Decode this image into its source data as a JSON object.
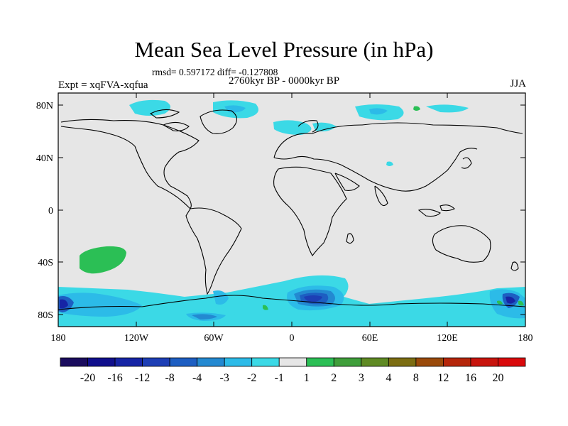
{
  "title": "Mean Sea Level Pressure (in hPa)",
  "stats_line": "rmsd= 0.597172 diff= -0.127808",
  "period_line": "2760kyr BP - 0000kyr BP",
  "experiment_label": "Expt = xqFVA-xqfua",
  "season_label": "JJA",
  "y_tick_labels": [
    "80N",
    "40N",
    "0",
    "40S",
    "80S"
  ],
  "x_tick_labels": [
    "180",
    "120W",
    "60W",
    "0",
    "60E",
    "120E",
    "180"
  ],
  "colorbar": {
    "labels": [
      "-20",
      "-16",
      "-12",
      "-8",
      "-4",
      "-3",
      "-2",
      "-1",
      "1",
      "2",
      "3",
      "4",
      "8",
      "12",
      "16",
      "20"
    ],
    "colors": [
      "#1a0c5e",
      "#100f8c",
      "#1624a5",
      "#1d3eb5",
      "#1d5ec2",
      "#2389d1",
      "#2cbbe8",
      "#3bd9e6",
      "#e6e6e6",
      "#2bbf55",
      "#3f9e3a",
      "#5f8a23",
      "#7c6d12",
      "#9a4a0a",
      "#b5260a",
      "#c8140d",
      "#d9090b"
    ]
  },
  "colors": {
    "land_background": "#e6e6e6",
    "coastline": "#000000",
    "positive_anomaly": "#2bbf55"
  }
}
